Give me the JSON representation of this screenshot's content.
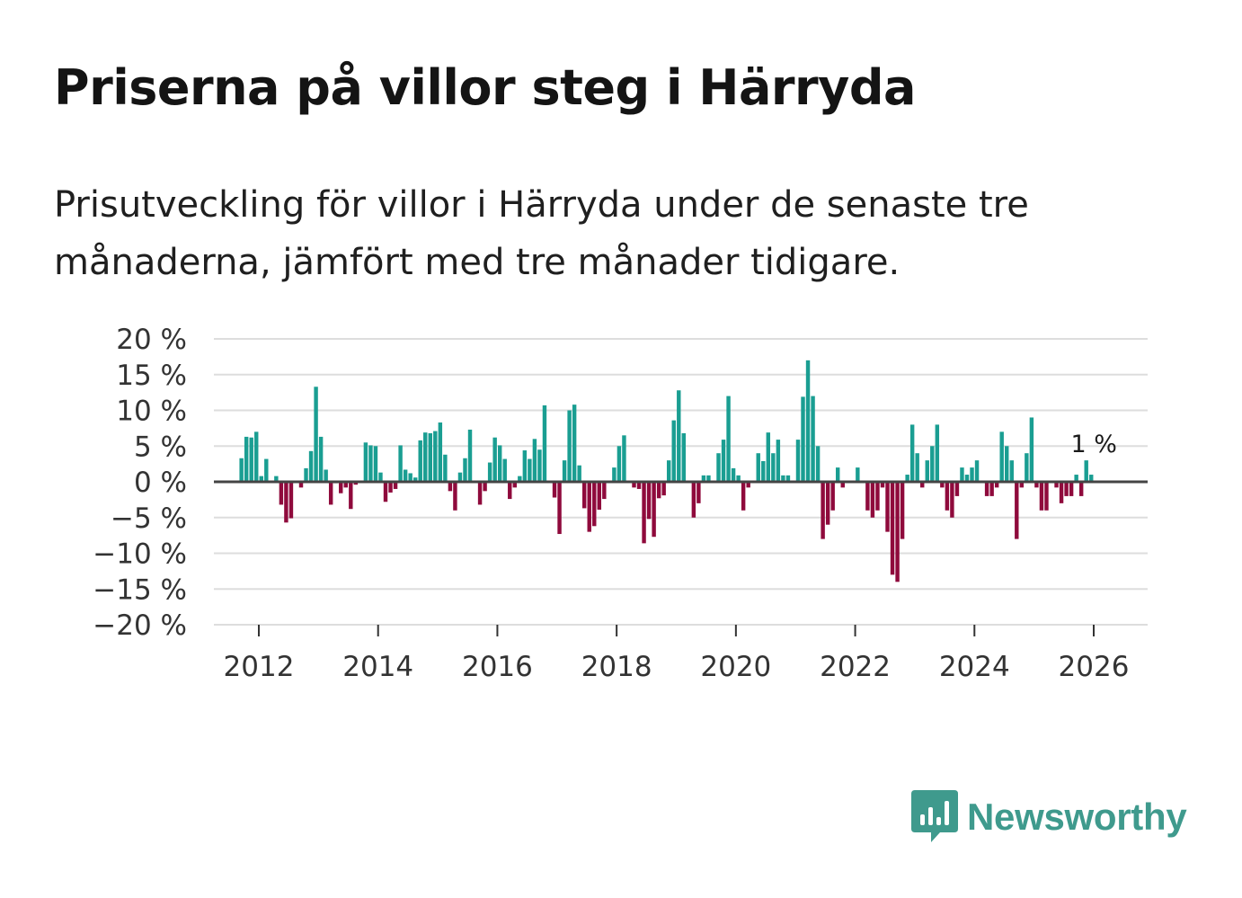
{
  "title": "Priserna på villor steg i Härryda",
  "subtitle": "Prisutveckling för villor i Härryda under de senaste tre månaderna, jämfört med tre månader tidigare.",
  "brand": {
    "name": "Newsworthy",
    "icon": "newsworthy-logo-icon"
  },
  "colors": {
    "positive": "#1a9e92",
    "negative": "#8f0a3c",
    "grid": "#dddddd",
    "zero": "#444444",
    "text": "#1a1a1a"
  },
  "chart_data": {
    "type": "bar",
    "title": "Priserna på villor steg i Härryda",
    "xlabel": "",
    "ylabel": "",
    "ylim": [
      -20,
      20
    ],
    "y_ticks": [
      20,
      15,
      10,
      5,
      0,
      -5,
      -10,
      -15,
      -20
    ],
    "y_tick_labels": [
      "20 %",
      "15 %",
      "10 %",
      "5 %",
      "0 %",
      "−5 %",
      "−10 %",
      "−15 %",
      "−20 %"
    ],
    "x_ticks": [
      2012,
      2014,
      2016,
      2018,
      2020,
      2022,
      2024,
      2026
    ],
    "x_tick_labels": [
      "2012",
      "2014",
      "2016",
      "2018",
      "2020",
      "2022",
      "2024",
      "2026"
    ],
    "start": {
      "year": 2011,
      "month": 9
    },
    "values": [
      3.3,
      6.3,
      6.2,
      7.0,
      0.8,
      3.2,
      0.0,
      0.8,
      -3.2,
      -5.7,
      -5.1,
      0.0,
      -0.8,
      1.9,
      4.3,
      13.3,
      6.3,
      1.7,
      -3.2,
      -0.2,
      -1.6,
      -0.8,
      -3.8,
      -0.4,
      0.0,
      5.5,
      5.1,
      5.0,
      1.3,
      -2.8,
      -1.5,
      -1.0,
      5.1,
      1.7,
      1.2,
      0.6,
      5.8,
      6.9,
      6.8,
      7.1,
      8.3,
      3.8,
      -1.3,
      -4.0,
      1.3,
      3.3,
      7.3,
      0.0,
      -3.2,
      -1.3,
      2.7,
      6.2,
      5.1,
      3.2,
      -2.4,
      -0.8,
      0.8,
      4.4,
      3.2,
      6.0,
      4.5,
      10.7,
      0.0,
      -2.2,
      -7.3,
      3.0,
      10.0,
      10.8,
      2.3,
      -3.7,
      -7.0,
      -6.2,
      -3.9,
      -2.4,
      0.0,
      2.0,
      5.0,
      6.5,
      0.0,
      -0.8,
      -1.0,
      -8.6,
      -5.2,
      -7.7,
      -2.3,
      -1.9,
      3.0,
      8.6,
      12.8,
      6.8,
      0.0,
      -5.0,
      -3.0,
      0.9,
      0.9,
      0.0,
      4.0,
      5.9,
      12.0,
      1.9,
      0.9,
      -4.0,
      -0.8,
      0.0,
      4.0,
      2.9,
      6.9,
      4.0,
      5.9,
      0.9,
      0.9,
      0.0,
      5.9,
      11.9,
      17.0,
      12.0,
      5.0,
      -8.0,
      -6.0,
      -4.0,
      2.0,
      -0.8,
      0.0,
      0.0,
      2.0,
      0.0,
      -4.0,
      -5.0,
      -4.0,
      -0.8,
      -7.0,
      -13.0,
      -14.0,
      -8.0,
      1.0,
      8.0,
      4.0,
      -0.8,
      3.0,
      5.0,
      8.0,
      -0.8,
      -4.0,
      -5.0,
      -2.0,
      2.0,
      1.0,
      2.0,
      3.0,
      0.0,
      -2.0,
      -2.0,
      -0.8,
      7.0,
      5.0,
      3.0,
      -8.0,
      -0.8,
      4.0,
      9.0,
      -0.8,
      -4.0,
      -4.0,
      0.0,
      -0.8,
      -3.0,
      -2.0,
      -2.0,
      1.0,
      -2.0,
      3.0,
      1.0
    ],
    "annotation": {
      "text": "1 %",
      "ref": "last"
    }
  }
}
